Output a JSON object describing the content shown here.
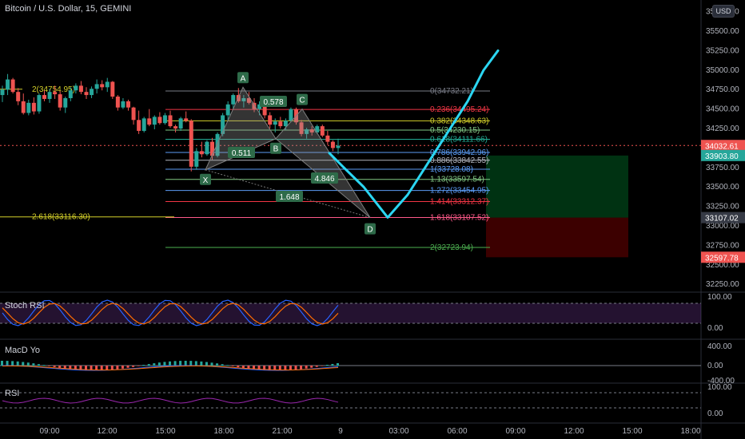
{
  "header": {
    "title": "Bitcoin / U.S. Dollar, 15, GEMINI",
    "currency_button": "USD"
  },
  "panes": {
    "stoch_rsi": "Stoch RSI",
    "macd": "MacD Yo",
    "rsi": "RSI"
  },
  "colors": {
    "bg": "#000000",
    "up": "#26a69a",
    "down": "#ef5350",
    "projection": "#2bd6f2",
    "pattern": "#7e7e7e",
    "pattern_label": "#2e6b49",
    "price_line": "#ef5350"
  },
  "chart_data": {
    "type": "candlestick",
    "title": "Bitcoin / U.S. Dollar, 15, GEMINI",
    "xlabel": "",
    "ylabel": "",
    "x_ticks": [
      "09:00",
      "12:00",
      "15:00",
      "18:00",
      "21:00",
      "9",
      "03:00",
      "06:00",
      "09:00",
      "12:00",
      "15:00",
      "18:00"
    ],
    "y_ticks": [
      "35750.00",
      "35500.00",
      "35250.00",
      "35000.00",
      "34750.00",
      "34500.00",
      "34250.00",
      "34000.00",
      "33750.00",
      "33500.00",
      "33250.00",
      "33000.00",
      "32750.00",
      "32500.00",
      "32250.00"
    ],
    "ylim": [
      32150,
      35900
    ],
    "current_price": 34032.61,
    "candles": [
      [
        34680,
        34800,
        34590,
        34750
      ],
      [
        34750,
        34950,
        34680,
        34880
      ],
      [
        34880,
        34900,
        34700,
        34720
      ],
      [
        34720,
        34770,
        34550,
        34600
      ],
      [
        34600,
        34700,
        34430,
        34450
      ],
      [
        34450,
        34620,
        34420,
        34580
      ],
      [
        34580,
        34650,
        34430,
        34470
      ],
      [
        34470,
        34700,
        34440,
        34680
      ],
      [
        34680,
        34740,
        34600,
        34630
      ],
      [
        34630,
        34760,
        34580,
        34720
      ],
      [
        34720,
        34800,
        34630,
        34690
      ],
      [
        34690,
        34730,
        34480,
        34520
      ],
      [
        34520,
        34660,
        34450,
        34640
      ],
      [
        34640,
        34780,
        34600,
        34740
      ],
      [
        34740,
        34830,
        34700,
        34800
      ],
      [
        34800,
        34860,
        34690,
        34720
      ],
      [
        34720,
        34780,
        34630,
        34680
      ],
      [
        34680,
        34790,
        34640,
        34760
      ],
      [
        34760,
        34880,
        34700,
        34820
      ],
      [
        34820,
        34870,
        34740,
        34780
      ],
      [
        34780,
        34900,
        34720,
        34850
      ],
      [
        34850,
        34860,
        34630,
        34660
      ],
      [
        34660,
        34680,
        34480,
        34520
      ],
      [
        34520,
        34640,
        34500,
        34600
      ],
      [
        34600,
        34620,
        34480,
        34520
      ],
      [
        34520,
        34530,
        34300,
        34360
      ],
      [
        34360,
        34480,
        34180,
        34220
      ],
      [
        34220,
        34400,
        34200,
        34380
      ],
      [
        34380,
        34500,
        34280,
        34300
      ],
      [
        34300,
        34420,
        34240,
        34400
      ],
      [
        34400,
        34460,
        34300,
        34320
      ],
      [
        34320,
        34450,
        34300,
        34420
      ],
      [
        34420,
        34480,
        34260,
        34280
      ],
      [
        34280,
        34300,
        34200,
        34250
      ],
      [
        34250,
        34400,
        34220,
        34380
      ],
      [
        34380,
        34470,
        34330,
        34350
      ],
      [
        34350,
        34370,
        33700,
        33760
      ],
      [
        33760,
        34000,
        33720,
        33960
      ],
      [
        33960,
        34080,
        33880,
        33920
      ],
      [
        33920,
        34100,
        33900,
        34080
      ],
      [
        34080,
        34130,
        33850,
        33900
      ],
      [
        33900,
        34200,
        33880,
        34180
      ],
      [
        34180,
        34450,
        34150,
        34420
      ],
      [
        34420,
        34600,
        34350,
        34560
      ],
      [
        34560,
        34700,
        34500,
        34680
      ],
      [
        34680,
        34770,
        34580,
        34600
      ],
      [
        34600,
        34680,
        34520,
        34640
      ],
      [
        34640,
        34720,
        34560,
        34580
      ],
      [
        34580,
        34640,
        34460,
        34500
      ],
      [
        34500,
        34600,
        34420,
        34560
      ],
      [
        34560,
        34580,
        34380,
        34420
      ],
      [
        34420,
        34460,
        34250,
        34300
      ],
      [
        34300,
        34380,
        34200,
        34340
      ],
      [
        34340,
        34400,
        34250,
        34280
      ],
      [
        34280,
        34380,
        34230,
        34350
      ],
      [
        34350,
        34520,
        34330,
        34500
      ],
      [
        34500,
        34520,
        34300,
        34330
      ],
      [
        34330,
        34360,
        34150,
        34180
      ],
      [
        34180,
        34260,
        34120,
        34240
      ],
      [
        34240,
        34280,
        34160,
        34200
      ],
      [
        34200,
        34300,
        34180,
        34280
      ],
      [
        34280,
        34300,
        34140,
        34160
      ],
      [
        34160,
        34220,
        34040,
        34080
      ],
      [
        34080,
        34100,
        33960,
        34000
      ],
      [
        34000,
        34120,
        33920,
        34030
      ]
    ],
    "projection_path": [
      [
        34000,
        33870
      ],
      [
        33800,
        33700
      ],
      [
        33600,
        33400
      ],
      [
        33107,
        33110
      ],
      [
        33300,
        33500
      ],
      [
        33700,
        33900
      ],
      [
        34100,
        34300
      ],
      [
        34500,
        34700
      ],
      [
        34900,
        35100
      ],
      [
        35250,
        35250
      ]
    ],
    "fib_levels": [
      {
        "label": "0(34732.21)",
        "value": 34732.21,
        "color": "#787b86"
      },
      {
        "label": "0.236(34495.24)",
        "value": 34495.24,
        "color": "#f23645"
      },
      {
        "label": "0.382(34348.63)",
        "value": 34348.63,
        "color": "#d4d02a"
      },
      {
        "label": "0.5(34230.15)",
        "value": 34230.15,
        "color": "#81c784"
      },
      {
        "label": "0.618(34111.66)",
        "value": 34111.66,
        "color": "#22ab94"
      },
      {
        "label": "0.786(33942.96)",
        "value": 33942.96,
        "color": "#5b9cf6"
      },
      {
        "label": "0.886(33842.55)",
        "value": 33842.55,
        "color": "#b2b5be"
      },
      {
        "label": "1(33728.08)",
        "value": 33728.08,
        "color": "#5b9cf6"
      },
      {
        "label": "1.13(33597.54)",
        "value": 33597.54,
        "color": "#81c784"
      },
      {
        "label": "1.272(33454.95)",
        "value": 33454.95,
        "color": "#5b9cf6"
      },
      {
        "label": "1.414(33312.37)",
        "value": 33312.37,
        "color": "#f23645"
      },
      {
        "label": "1.618(33107.52)",
        "value": 33107.52,
        "color": "#ff5a8a"
      },
      {
        "label": "2(32723.94)",
        "value": 32723.94,
        "color": "#4caf50"
      }
    ],
    "left_fib": [
      {
        "label": "2(34754.95)",
        "value": 34754.95,
        "color": "#d4d02a"
      },
      {
        "label": "2.618(33116.30)",
        "value": 33116.3,
        "color": "#d4d02a"
      }
    ],
    "harmonic_points": [
      {
        "label": "X",
        "value": 33720
      },
      {
        "label": "A",
        "value": 34780
      },
      {
        "label": "B",
        "value": 34120
      },
      {
        "label": "C",
        "value": 34500
      },
      {
        "label": "D",
        "value": 33107
      }
    ],
    "pattern_ratios": [
      "0.578",
      "0.511",
      "4.846",
      "1.648"
    ],
    "position": {
      "entry": 33903.8,
      "target": 33107.02,
      "stop": 32597.78
    },
    "price_tags": [
      {
        "label": "34032.61",
        "value": 34032.61,
        "color": "#ef5350"
      },
      {
        "label": "33903.80",
        "value": 33903.8,
        "color": "#26a69a"
      },
      {
        "label": "33107.02",
        "value": 33107.02,
        "color": "#363a45"
      },
      {
        "label": "32597.78",
        "value": 32597.78,
        "color": "#ef5350"
      }
    ],
    "stoch_ticks": [
      "100.00",
      "0.00"
    ],
    "macd_ticks": [
      "400.00",
      "0.00",
      "-400.00"
    ],
    "rsi_ticks": [
      "100.00",
      "0.00"
    ]
  }
}
